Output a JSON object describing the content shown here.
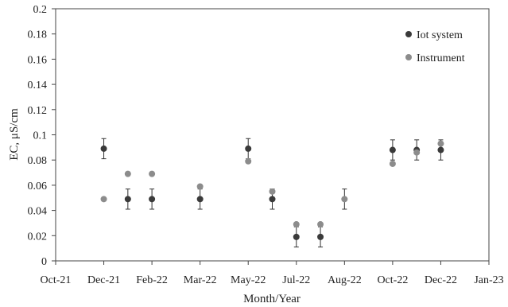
{
  "chart_data": {
    "type": "scatter",
    "title": "",
    "xlabel": "Month/Year",
    "ylabel": "EC, μS/cm",
    "x_ticks": [
      "Oct-21",
      "Dec-21",
      "Feb-22",
      "Mar-22",
      "May-22",
      "Jul-22",
      "Aug-22",
      "Oct-22",
      "Dec-22",
      "Jan-23"
    ],
    "xlim": [
      0,
      9
    ],
    "ylim": [
      0,
      0.2
    ],
    "y_ticks": [
      "0",
      "0.02",
      "0.04",
      "0.06",
      "0.08",
      "0.1",
      "0.12",
      "0.14",
      "0.16",
      "0.18",
      "0.2"
    ],
    "y_tick_values": [
      0,
      0.02,
      0.04,
      0.06,
      0.08,
      0.1,
      0.12,
      0.14,
      0.16,
      0.18,
      0.2
    ],
    "grid": false,
    "legend_position": "top-right",
    "series": [
      {
        "name": "Iot system",
        "color": "#3a3a3a",
        "points": [
          {
            "x": 1,
            "y": 0.089,
            "err": 0.008
          },
          {
            "x": 1.5,
            "y": 0.049,
            "err": 0.008
          },
          {
            "x": 2,
            "y": 0.049,
            "err": 0.008
          },
          {
            "x": 3,
            "y": 0.049,
            "err": 0.008
          },
          {
            "x": 4,
            "y": 0.089,
            "err": 0.008
          },
          {
            "x": 4.5,
            "y": 0.049,
            "err": 0.008
          },
          {
            "x": 5,
            "y": 0.019,
            "err": 0.008
          },
          {
            "x": 5.5,
            "y": 0.019,
            "err": 0.008
          },
          {
            "x": 7,
            "y": 0.088,
            "err": 0.008
          },
          {
            "x": 7.5,
            "y": 0.088,
            "err": 0.008
          },
          {
            "x": 8,
            "y": 0.088,
            "err": 0.008
          }
        ]
      },
      {
        "name": "Instrument",
        "color": "#8c8c8c",
        "points": [
          {
            "x": 1,
            "y": 0.049
          },
          {
            "x": 1.5,
            "y": 0.069
          },
          {
            "x": 2,
            "y": 0.069
          },
          {
            "x": 3,
            "y": 0.059
          },
          {
            "x": 4,
            "y": 0.079
          },
          {
            "x": 4.5,
            "y": 0.055
          },
          {
            "x": 5,
            "y": 0.029
          },
          {
            "x": 5.5,
            "y": 0.029
          },
          {
            "x": 6,
            "y": 0.049,
            "err": 0.008
          },
          {
            "x": 7,
            "y": 0.077
          },
          {
            "x": 7.5,
            "y": 0.086
          },
          {
            "x": 8,
            "y": 0.093
          }
        ]
      }
    ]
  }
}
